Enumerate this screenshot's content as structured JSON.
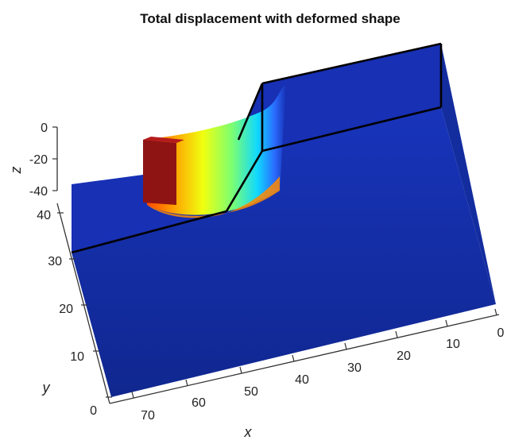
{
  "chart_data": {
    "type": "surface3d",
    "title": "Total displacement with deformed shape",
    "xlabel": "x",
    "ylabel": "y",
    "zlabel": "z",
    "x_ticks": [
      "70",
      "60",
      "50",
      "40",
      "30",
      "20",
      "10",
      "0"
    ],
    "y_ticks": [
      "0",
      "10",
      "20",
      "30",
      "40"
    ],
    "z_ticks": [
      "0",
      "-20",
      "-40"
    ],
    "colormap": "jet",
    "colors": {
      "block": "#1730b4",
      "block_dark": "#0f2796",
      "outline": "#000000",
      "axes": "#333333"
    }
  }
}
